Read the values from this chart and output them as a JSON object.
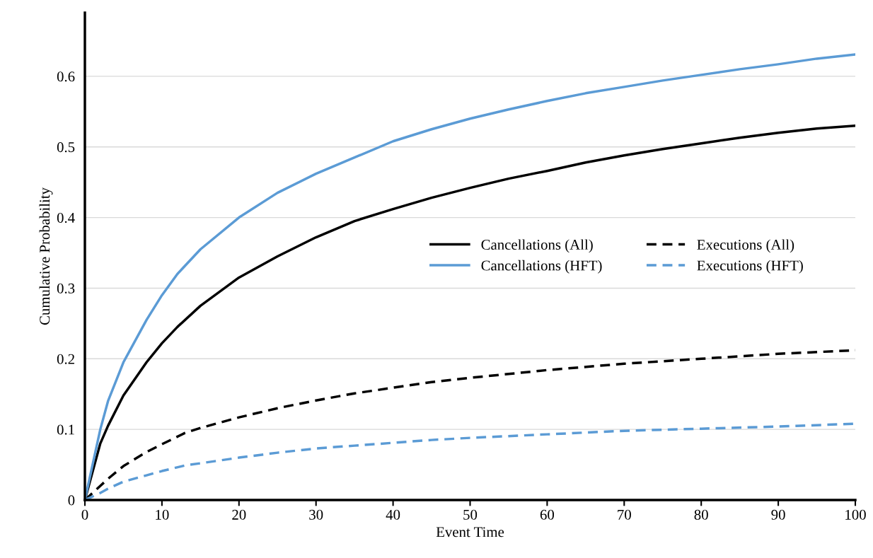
{
  "chart_data": {
    "type": "line",
    "xlabel": "Event Time",
    "ylabel": "Cumulative Probability",
    "xlim": [
      0,
      100
    ],
    "xticks": [
      0,
      10,
      20,
      30,
      40,
      50,
      60,
      70,
      80,
      90,
      100
    ],
    "ylim": [
      0,
      0.69
    ],
    "yticks": [
      0,
      0.1,
      0.2,
      0.3,
      0.4,
      0.5,
      0.6
    ],
    "grid": "y",
    "legend": "center right",
    "marker": "none",
    "series": [
      {
        "name": "Cancellations (All)",
        "color": "#000000",
        "line_style": "solid",
        "x": [
          0,
          1,
          2,
          3,
          5,
          8,
          10,
          12,
          15,
          20,
          25,
          30,
          35,
          40,
          45,
          50,
          55,
          60,
          65,
          70,
          75,
          80,
          85,
          90,
          95,
          100
        ],
        "values": [
          0,
          0.04,
          0.08,
          0.105,
          0.148,
          0.195,
          0.222,
          0.245,
          0.275,
          0.315,
          0.345,
          0.372,
          0.395,
          0.412,
          0.428,
          0.442,
          0.455,
          0.466,
          0.478,
          0.488,
          0.497,
          0.505,
          0.513,
          0.52,
          0.526,
          0.53
        ]
      },
      {
        "name": "Executions (All)",
        "color": "#000000",
        "line_style": "dashed",
        "x": [
          0,
          2,
          3,
          5,
          8,
          10,
          13,
          15,
          20,
          25,
          30,
          35,
          40,
          45,
          50,
          60,
          70,
          80,
          90,
          100
        ],
        "values": [
          0,
          0.02,
          0.03,
          0.048,
          0.068,
          0.079,
          0.095,
          0.102,
          0.117,
          0.13,
          0.141,
          0.151,
          0.159,
          0.167,
          0.173,
          0.184,
          0.193,
          0.2,
          0.207,
          0.212
        ]
      },
      {
        "name": "Cancellations (HFT)",
        "color": "#5b9bd5",
        "line_style": "solid",
        "x": [
          0,
          2,
          3,
          5,
          8,
          10,
          12,
          15,
          20,
          25,
          30,
          35,
          40,
          45,
          50,
          55,
          60,
          65,
          70,
          75,
          80,
          85,
          90,
          95,
          100
        ],
        "values": [
          0,
          0.1,
          0.14,
          0.195,
          0.255,
          0.29,
          0.32,
          0.355,
          0.4,
          0.435,
          0.462,
          0.485,
          0.508,
          0.525,
          0.54,
          0.553,
          0.565,
          0.576,
          0.585,
          0.594,
          0.602,
          0.61,
          0.617,
          0.625,
          0.631
        ]
      },
      {
        "name": "Executions (HFT)",
        "color": "#5b9bd5",
        "line_style": "dashed",
        "x": [
          0,
          2,
          3,
          5,
          8,
          10,
          13,
          15,
          20,
          25,
          30,
          35,
          40,
          45,
          50,
          60,
          70,
          80,
          90,
          100
        ],
        "values": [
          0,
          0.01,
          0.016,
          0.026,
          0.035,
          0.041,
          0.049,
          0.052,
          0.06,
          0.067,
          0.073,
          0.077,
          0.081,
          0.085,
          0.088,
          0.093,
          0.098,
          0.101,
          0.104,
          0.108
        ]
      }
    ]
  }
}
